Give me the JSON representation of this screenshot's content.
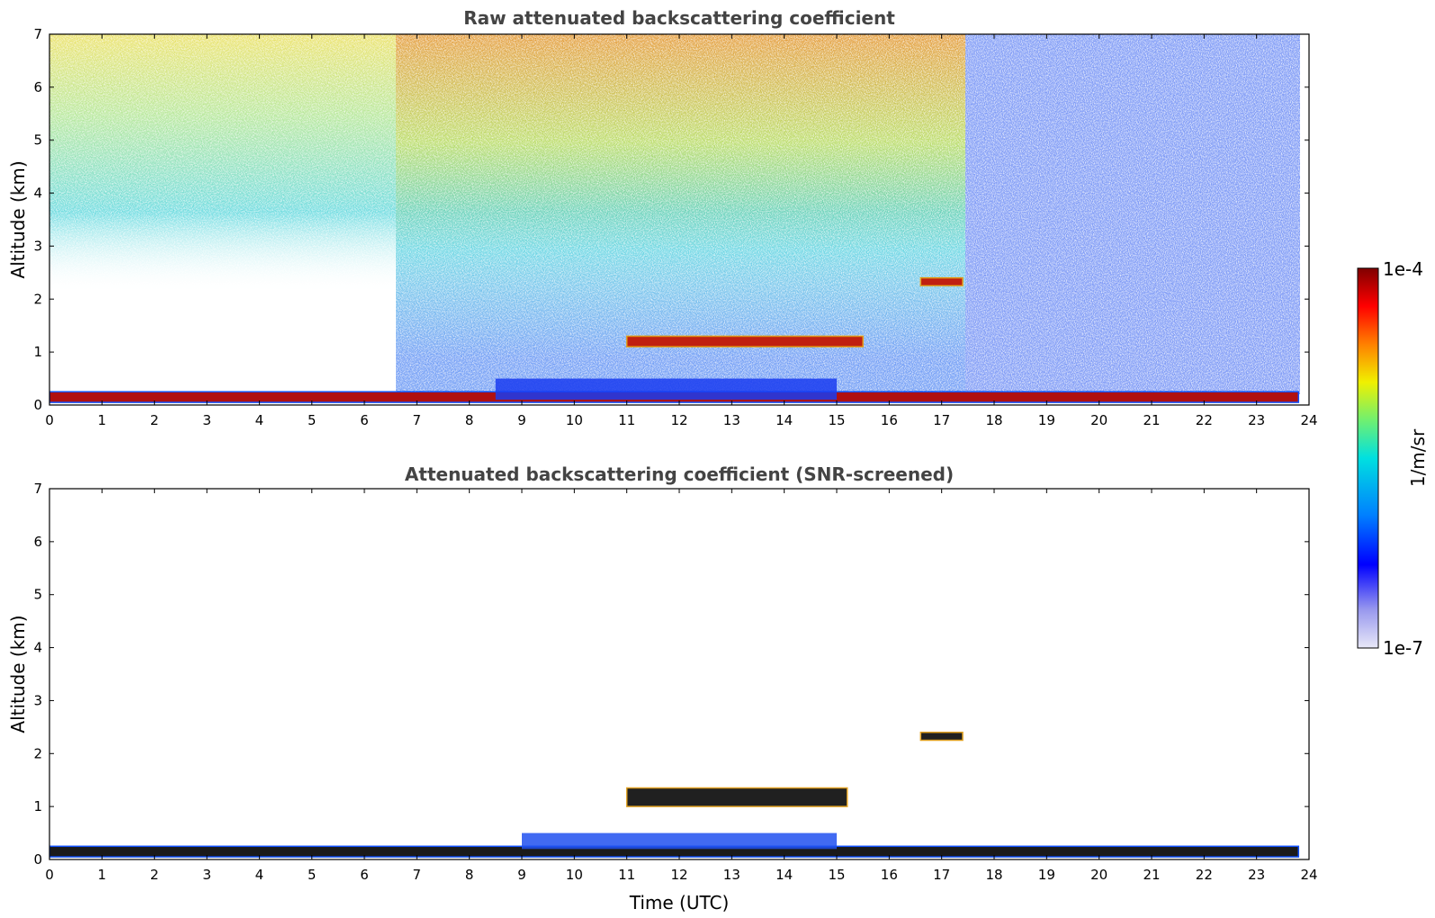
{
  "chart_data": [
    {
      "type": "heatmap",
      "title": "Raw attenuated backscattering coefficient",
      "xlabel": "",
      "ylabel": "Altitude (km)",
      "xlim": [
        0,
        24
      ],
      "ylim": [
        0,
        7
      ],
      "xticks": [
        "0",
        "1",
        "2",
        "3",
        "4",
        "5",
        "6",
        "7",
        "8",
        "9",
        "10",
        "11",
        "12",
        "13",
        "14",
        "15",
        "16",
        "17",
        "18",
        "19",
        "20",
        "21",
        "22",
        "23",
        "24"
      ],
      "yticks": [
        "0",
        "1",
        "2",
        "3",
        "4",
        "5",
        "6",
        "7"
      ],
      "grid": false,
      "features": [
        {
          "name": "surface layer",
          "x": [
            0,
            23.8
          ],
          "y": [
            0.05,
            0.25
          ],
          "level": "high"
        },
        {
          "name": "boundary layer top",
          "x": [
            8.5,
            15.0
          ],
          "y": [
            0.1,
            0.5
          ],
          "level": "high"
        },
        {
          "name": "cloud layer",
          "x": [
            11.0,
            15.5
          ],
          "y": [
            1.1,
            1.3
          ],
          "level": "high"
        },
        {
          "name": "elevated cloud",
          "x": [
            16.6,
            17.4
          ],
          "y": [
            2.25,
            2.4
          ],
          "level": "high"
        },
        {
          "name": "clear-air noise",
          "x": [
            0,
            17.4
          ],
          "y": [
            0.5,
            7.0
          ],
          "level": "medium"
        },
        {
          "name": "night-time noise",
          "x": [
            17.4,
            23.8
          ],
          "y": [
            0.3,
            7.0
          ],
          "level": "low"
        }
      ]
    },
    {
      "type": "heatmap",
      "title": "Attenuated backscattering coefficient (SNR-screened)",
      "xlabel": "Time (UTC)",
      "ylabel": "Altitude (km)",
      "xlim": [
        0,
        24
      ],
      "ylim": [
        0,
        7
      ],
      "xticks": [
        "0",
        "1",
        "2",
        "3",
        "4",
        "5",
        "6",
        "7",
        "8",
        "9",
        "10",
        "11",
        "12",
        "13",
        "14",
        "15",
        "16",
        "17",
        "18",
        "19",
        "20",
        "21",
        "22",
        "23",
        "24"
      ],
      "yticks": [
        "0",
        "1",
        "2",
        "3",
        "4",
        "5",
        "6",
        "7"
      ],
      "grid": false,
      "features": [
        {
          "name": "surface layer",
          "x": [
            0,
            23.8
          ],
          "y": [
            0.05,
            0.25
          ],
          "level": "high"
        },
        {
          "name": "boundary layer top",
          "x": [
            9.0,
            15.0
          ],
          "y": [
            0.2,
            0.5
          ],
          "level": "high"
        },
        {
          "name": "cloud layer",
          "x": [
            11.0,
            15.2
          ],
          "y": [
            1.0,
            1.35
          ],
          "level": "high"
        },
        {
          "name": "elevated cloud",
          "x": [
            16.6,
            17.4
          ],
          "y": [
            2.25,
            2.4
          ],
          "level": "high"
        }
      ]
    }
  ],
  "colorbar": {
    "max_label": "1e-4",
    "min_label": "1e-7",
    "unit_label": "1/m/sr",
    "colors": [
      "#e8e8f8",
      "#9999ee",
      "#0000ff",
      "#0080ff",
      "#00e0e0",
      "#70f070",
      "#f0f000",
      "#ff8000",
      "#ff0000",
      "#800000"
    ]
  }
}
